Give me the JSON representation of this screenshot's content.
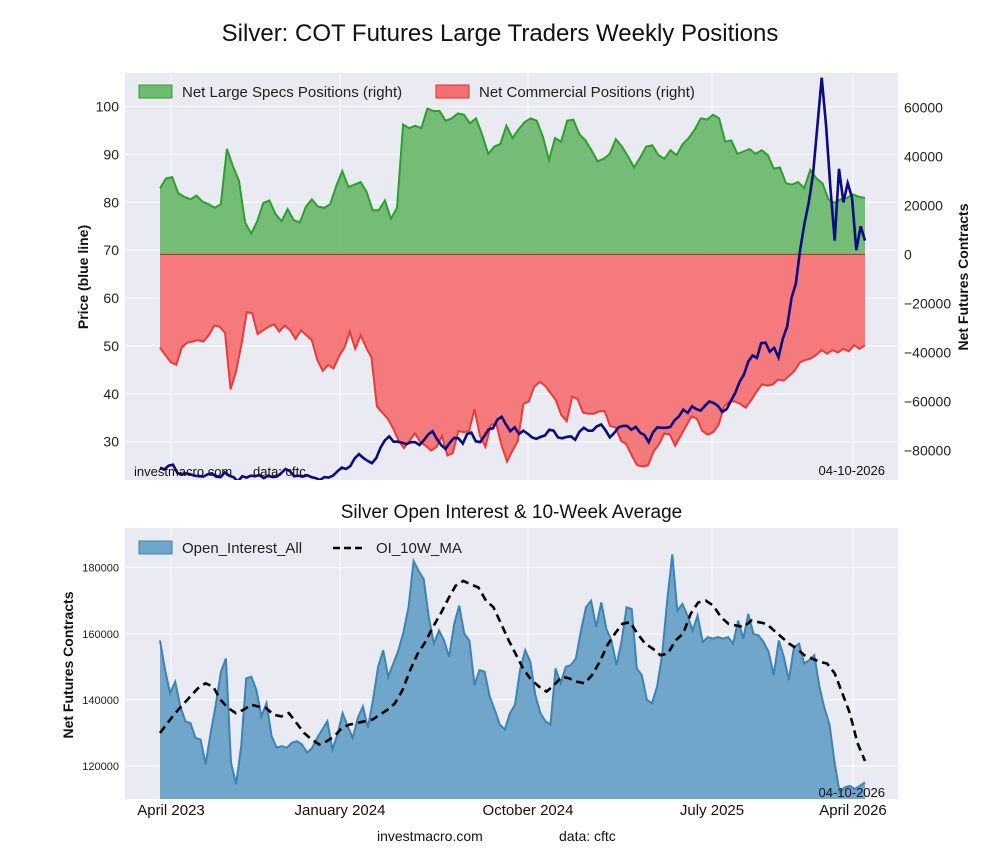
{
  "page": {
    "title": "Silver: COT Futures Large Traders Weekly Positions",
    "footer_site": "investmacro.com",
    "footer_data": "data: cftc"
  },
  "chart_data": [
    {
      "type": "area",
      "title": "Silver: COT Futures Large Traders Weekly Positions",
      "ylabel_left": "Price (blue line)",
      "ylabel_right": "Net Futures Contracts",
      "ylim_left": [
        22,
        107
      ],
      "ylim_right": [
        -92000,
        74000
      ],
      "left_ticks": [
        30,
        40,
        50,
        60,
        70,
        80,
        90,
        100
      ],
      "right_ticks": [
        -80000,
        -60000,
        -40000,
        -20000,
        0,
        20000,
        40000,
        60000
      ],
      "right_tick_labels": [
        "−80000",
        "−60000",
        "−40000",
        "−20000",
        "0",
        "20000",
        "40000",
        "60000"
      ],
      "legend_position": "top-left",
      "grid": true,
      "watermark_left": "investmacro.com",
      "watermark_mid": "data: cftc",
      "date_label": "04-10-2026",
      "series": [
        {
          "name": "Net Large Specs Positions (right)",
          "axis": "right",
          "color": "#2ca02c",
          "values": [
            27000,
            31000,
            31500,
            25000,
            23500,
            22500,
            24000,
            21500,
            20500,
            19000,
            20500,
            43000,
            36000,
            30000,
            13000,
            8500,
            13500,
            21000,
            22000,
            16500,
            13500,
            18500,
            14000,
            13000,
            19500,
            22500,
            19500,
            19000,
            20500,
            28000,
            34000,
            27500,
            28500,
            29500,
            25500,
            18000,
            18000,
            22000,
            14500,
            19000,
            53000,
            51500,
            52500,
            51500,
            59500,
            58500,
            58500,
            54500,
            55500,
            57500,
            57000,
            53500,
            55500,
            49000,
            41000,
            44000,
            45000,
            52500,
            47500,
            51000,
            54000,
            55500,
            54500,
            48000,
            38500,
            47500,
            46000,
            54500,
            55000,
            49000,
            46500,
            42500,
            38000,
            39000,
            41000,
            47000,
            44000,
            40000,
            35500,
            39500,
            44000,
            44500,
            40500,
            39000,
            42500,
            40500,
            45000,
            47500,
            51000,
            55500,
            55000,
            57000,
            55500,
            46000,
            46500,
            41000,
            42000,
            43000,
            41000,
            42500,
            40500,
            35000,
            35500,
            29000,
            28500,
            29500,
            27000,
            34500,
            31000,
            29000,
            22500,
            21000,
            22500,
            23000,
            24500,
            23500,
            23000
          ]
        },
        {
          "name": "Net Commercial Positions (right)",
          "axis": "right",
          "color": "#f55a5a",
          "values": [
            -38000,
            -41000,
            -44000,
            -45000,
            -38000,
            -36000,
            -35500,
            -35000,
            -35500,
            -33000,
            -29000,
            -29500,
            -32000,
            -55000,
            -48000,
            -37000,
            -23500,
            -24000,
            -32500,
            -31000,
            -29500,
            -28500,
            -31500,
            -29000,
            -31000,
            -34500,
            -31000,
            -33000,
            -35000,
            -43000,
            -47500,
            -45000,
            -46500,
            -41500,
            -38000,
            -31500,
            -38500,
            -33000,
            -38000,
            -42000,
            -62000,
            -64500,
            -67000,
            -71000,
            -76000,
            -79000,
            -76000,
            -73000,
            -76500,
            -78000,
            -80000,
            -78500,
            -74000,
            -82000,
            -81000,
            -72000,
            -72500,
            -72000,
            -63000,
            -74000,
            -78500,
            -69500,
            -69000,
            -78000,
            -84500,
            -80000,
            -76000,
            -61000,
            -60000,
            -54000,
            -52000,
            -53500,
            -56500,
            -59500,
            -65500,
            -68000,
            -58000,
            -59000,
            -64500,
            -65000,
            -65000,
            -64000,
            -64000,
            -70000,
            -70500,
            -76000,
            -77500,
            -82000,
            -86000,
            -86500,
            -86000,
            -80500,
            -77500,
            -73000,
            -73500,
            -78000,
            -74000,
            -70000,
            -66000,
            -67000,
            -72000,
            -73500,
            -72500,
            -69500,
            -62000,
            -60000,
            -60000,
            -61000,
            -62500,
            -59500,
            -56000,
            -53000,
            -53500,
            -53000,
            -51000,
            -51500,
            -49500,
            -47500,
            -44000,
            -43000,
            -42500,
            -41000,
            -39000,
            -40500,
            -39000,
            -40000,
            -38500,
            -39500,
            -37000,
            -38500,
            -37000
          ]
        },
        {
          "name": "Price",
          "axis": "left",
          "color": "#0b0b82",
          "values": [
            24.6,
            24.2,
            25.0,
            25.2,
            23.5,
            23.1,
            23.4,
            23.2,
            22.9,
            22.8,
            22.7,
            23.2,
            23.4,
            22.7,
            22.6,
            23.6,
            22.9,
            22.6,
            21.7,
            22.8,
            22.5,
            22.9,
            22.8,
            23.0,
            22.4,
            22.9,
            22.6,
            22.7,
            23.4,
            24.3,
            23.9,
            22.8,
            22.9,
            22.7,
            23.0,
            22.6,
            22.4,
            22.0,
            22.6,
            22.5,
            22.9,
            23.8,
            24.6,
            24.3,
            24.9,
            26.5,
            27.4,
            26.6,
            26.0,
            25.5,
            26.6,
            28.8,
            30.3,
            31.1,
            30.0,
            30.0,
            29.8,
            29.5,
            29.9,
            29.9,
            29.3,
            30.3,
            31.5,
            32.2,
            30.6,
            29.3,
            28.5,
            29.8,
            30.8,
            30.7,
            29.6,
            31.6,
            31.9,
            30.1,
            29.9,
            31.2,
            32.6,
            32.8,
            34.6,
            35.2,
            33.6,
            32.2,
            33.0,
            31.6,
            32.3,
            31.7,
            30.9,
            30.6,
            31.0,
            31.3,
            32.5,
            32.3,
            30.9,
            30.7,
            31.0,
            31.1,
            30.4,
            32.1,
            32.9,
            32.3,
            32.3,
            33.2,
            33.6,
            32.4,
            30.9,
            31.8,
            33.0,
            33.3,
            33.3,
            32.5,
            33.1,
            31.9,
            31.4,
            29.9,
            32.0,
            33.0,
            32.9,
            32.9,
            33.1,
            34.5,
            35.3,
            36.7,
            36.0,
            37.4,
            36.8,
            36.5,
            37.5,
            38.4,
            38.1,
            37.5,
            36.2,
            36.8,
            38.5,
            40.2,
            42.5,
            44.0,
            46.7,
            48.0,
            47.5,
            50.6,
            50.7,
            48.8,
            49.6,
            47.6,
            51.5,
            54.0,
            60.0,
            63.0,
            70.0,
            75.5,
            80.0,
            86.0,
            96.0,
            106.0,
            96.0,
            83.0,
            72.0,
            87.0,
            80.0,
            84.0,
            81.0,
            70.0,
            75.0,
            72.0
          ]
        }
      ]
    },
    {
      "type": "area",
      "title": "Silver Open Interest & 10-Week Average",
      "ylabel": "Net Futures Contracts",
      "ylim": [
        110000,
        192000
      ],
      "y_ticks": [
        120000,
        140000,
        160000,
        180000
      ],
      "x_tick_labels": [
        "April 2023",
        "January 2024",
        "October 2024",
        "July 2025",
        "April 2026"
      ],
      "legend_position": "top-left",
      "grid": true,
      "date_label": "04-10-2026",
      "series": [
        {
          "name": "Open_Interest_All",
          "color": "#3a84b6",
          "values": [
            158000,
            149000,
            142000,
            145500,
            138000,
            133500,
            133000,
            128500,
            128000,
            120500,
            130000,
            138500,
            148500,
            152500,
            121000,
            114500,
            126000,
            146500,
            147000,
            143000,
            135000,
            139000,
            129000,
            125500,
            126000,
            125500,
            127000,
            127500,
            126500,
            124000,
            125500,
            128500,
            131000,
            133500,
            125000,
            129500,
            136000,
            132000,
            128500,
            134500,
            138000,
            131500,
            140000,
            150000,
            155000,
            147000,
            151000,
            155000,
            160500,
            168000,
            182000,
            179000,
            176500,
            165000,
            157000,
            161000,
            158000,
            153000,
            163000,
            168500,
            160000,
            158000,
            144500,
            149000,
            148500,
            141000,
            137000,
            132500,
            131000,
            136000,
            138500,
            149000,
            155000,
            151500,
            141500,
            136000,
            133500,
            132500,
            149500,
            145000,
            150000,
            150500,
            152500,
            161000,
            168000,
            170000,
            162000,
            169500,
            161500,
            158000,
            150500,
            157500,
            168000,
            167500,
            149500,
            147500,
            140000,
            139000,
            144000,
            153500,
            170000,
            184000,
            167000,
            169000,
            165500,
            161000,
            165500,
            157500,
            159000,
            158500,
            159000,
            158500,
            159000,
            157000,
            164000,
            158500,
            166000,
            160000,
            159500,
            157500,
            154500,
            147500,
            158000,
            153000,
            146000,
            156000,
            157000,
            151000,
            152000,
            153500,
            144000,
            137500,
            132500,
            121000,
            112000,
            113500,
            114000,
            113000,
            114000,
            115000
          ]
        },
        {
          "name": "OI_10W_MA",
          "color": "#000000",
          "values": [
            130000,
            133000,
            136000,
            138500,
            141000,
            143500,
            145000,
            144000,
            140000,
            137500,
            136000,
            137000,
            138500,
            138000,
            137500,
            135500,
            135000,
            136000,
            133000,
            130000,
            128000,
            126500,
            127500,
            129000,
            131500,
            132500,
            133000,
            133500,
            134000,
            135500,
            137000,
            139000,
            143000,
            149000,
            154000,
            157500,
            162000,
            166000,
            170500,
            174500,
            176000,
            175000,
            174000,
            170000,
            168000,
            163000,
            158000,
            153500,
            149000,
            146000,
            144000,
            142500,
            144500,
            147000,
            146500,
            145500,
            145000,
            147500,
            151500,
            156500,
            160000,
            163000,
            163500,
            160000,
            157000,
            155500,
            153500,
            154000,
            158000,
            160000,
            166000,
            169500,
            170000,
            168500,
            165000,
            163000,
            162500,
            162000,
            164000,
            163500,
            163000,
            161000,
            159000,
            157000,
            155500,
            153500,
            152500,
            151500,
            151000,
            148000,
            142000,
            136000,
            127000,
            121500
          ]
        }
      ]
    }
  ]
}
